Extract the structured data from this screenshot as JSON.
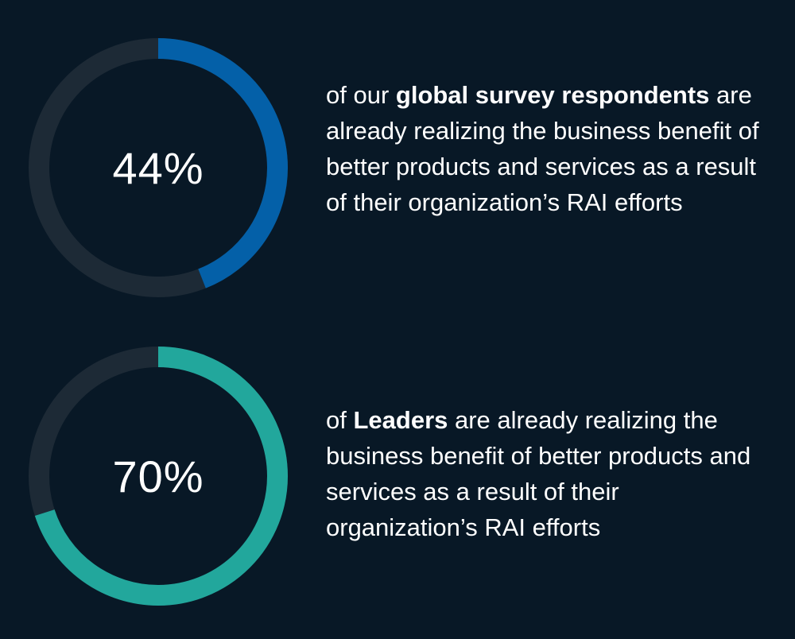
{
  "colors": {
    "background": "#081826",
    "track": "#1d2a36",
    "blue": "#0460a8",
    "teal": "#22a79c"
  },
  "chart_data": [
    {
      "type": "pie",
      "style": "donut",
      "value_percent": 44,
      "label": "44%",
      "color": "#0460a8",
      "caption": {
        "pre": "of our ",
        "bold": "global survey respondents",
        "post": " are already realizing the business benefit of better products and services as a result of their organization’s RAI efforts"
      }
    },
    {
      "type": "pie",
      "style": "donut",
      "value_percent": 70,
      "label": "70%",
      "color": "#22a79c",
      "caption": {
        "pre": "of ",
        "bold": "Leaders",
        "post": " are already realizing the business benefit of better products and services as a result of their organization’s RAI efforts"
      }
    }
  ]
}
